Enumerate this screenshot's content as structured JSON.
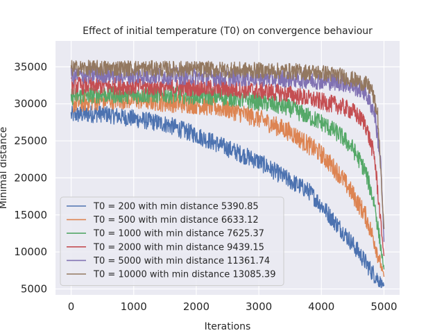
{
  "chart_data": {
    "type": "line",
    "title": "Effect of initial temperature (T0) on convergence behaviour",
    "xlabel": "Iterations",
    "ylabel": "Minimal distance",
    "xlim": [
      -250,
      5250
    ],
    "ylim": [
      4200,
      38500
    ],
    "xticks": [
      0,
      1000,
      2000,
      3000,
      4000,
      5000
    ],
    "yticks": [
      5000,
      10000,
      15000,
      20000,
      25000,
      30000,
      35000
    ],
    "xtick_labels": [
      "0",
      "1000",
      "2000",
      "3000",
      "4000",
      "5000"
    ],
    "ytick_labels": [
      "5000",
      "10000",
      "15000",
      "20000",
      "25000",
      "30000",
      "35000"
    ],
    "grid": true,
    "legend_position": "lower-left",
    "colors": {
      "background": "#eaeaf2",
      "grid": "#ffffff"
    },
    "series": [
      {
        "name": "T0 = 200 with min distance 5390.85",
        "color": "#4c72b0",
        "noise": 1200,
        "x": [
          0,
          500,
          1000,
          1500,
          2000,
          2500,
          3000,
          3500,
          3800,
          4000,
          4200,
          4400,
          4600,
          4800,
          5000
        ],
        "y": [
          28500,
          28700,
          28000,
          27300,
          25800,
          24000,
          22200,
          19600,
          18200,
          16300,
          14200,
          12200,
          9900,
          7400,
          5390.85
        ]
      },
      {
        "name": "T0 = 500 with min distance 6633.12",
        "color": "#dd8452",
        "noise": 1300,
        "x": [
          0,
          500,
          1000,
          1500,
          2000,
          2500,
          3000,
          3500,
          4000,
          4300,
          4500,
          4700,
          4850,
          5000
        ],
        "y": [
          30000,
          30500,
          30600,
          30200,
          29900,
          29300,
          28000,
          26200,
          23200,
          20400,
          17800,
          15000,
          11400,
          6633.12
        ]
      },
      {
        "name": "T0 = 1000 with min distance 7625.37",
        "color": "#55a868",
        "noise": 1200,
        "x": [
          0,
          500,
          1000,
          1500,
          2000,
          2500,
          3000,
          3500,
          4000,
          4300,
          4500,
          4700,
          4850,
          5000
        ],
        "y": [
          31000,
          31300,
          31200,
          31300,
          31100,
          30900,
          30300,
          29400,
          27500,
          25800,
          24000,
          21000,
          16500,
          7625.37
        ]
      },
      {
        "name": "T0 = 2000 with min distance 9439.15",
        "color": "#c44e52",
        "noise": 1200,
        "x": [
          0,
          500,
          1000,
          1500,
          2000,
          2500,
          3000,
          3500,
          4000,
          4300,
          4500,
          4700,
          4850,
          5000
        ],
        "y": [
          32500,
          32400,
          32400,
          32200,
          32200,
          32000,
          31800,
          31300,
          30300,
          29700,
          29000,
          27400,
          22800,
          9439.15
        ]
      },
      {
        "name": "T0 = 5000 with min distance 11361.74",
        "color": "#8172b3",
        "noise": 1200,
        "x": [
          0,
          500,
          1000,
          1500,
          2000,
          2500,
          3000,
          3500,
          4000,
          4300,
          4500,
          4700,
          4850,
          4950,
          5000
        ],
        "y": [
          33800,
          34000,
          33800,
          33800,
          33700,
          33600,
          33500,
          33400,
          33100,
          32900,
          32400,
          31600,
          28800,
          22000,
          11361.74
        ]
      },
      {
        "name": "T0 = 10000 with min distance 13085.39",
        "color": "#937860",
        "noise": 1100,
        "x": [
          0,
          500,
          1000,
          1500,
          2000,
          2500,
          3000,
          3500,
          4000,
          4300,
          4500,
          4700,
          4800,
          4900,
          5000
        ],
        "y": [
          34800,
          34800,
          34800,
          34700,
          34700,
          34600,
          34500,
          34400,
          34200,
          33800,
          33300,
          32700,
          32000,
          28500,
          13085.39
        ]
      }
    ]
  }
}
